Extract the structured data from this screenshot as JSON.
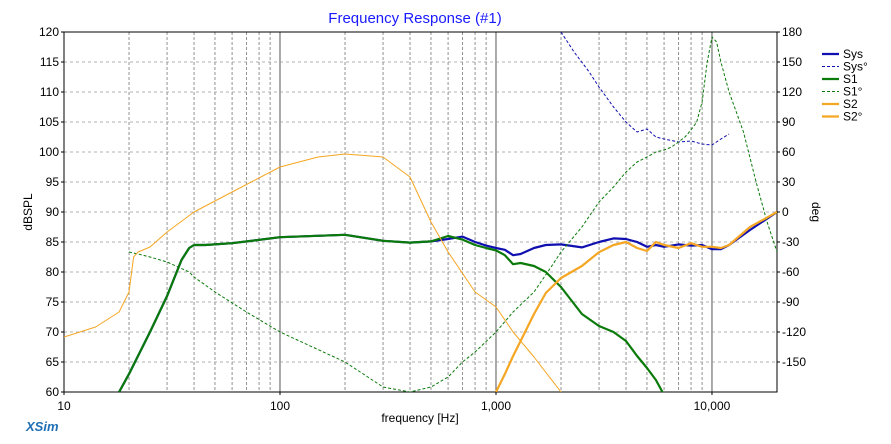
{
  "chart_data": {
    "type": "line",
    "title": "Frequency Response (#1)",
    "xlabel": "frequency [Hz]",
    "ylabel": "dBSPL",
    "y2label": "deg",
    "xscale": "log",
    "xlim": [
      10,
      20000
    ],
    "ylim": [
      60,
      120
    ],
    "y2lim": [
      -180,
      180
    ],
    "x_ticks": [
      {
        "v": 10,
        "label": "10"
      },
      {
        "v": 100,
        "label": "100"
      },
      {
        "v": 1000,
        "label": "1,000"
      },
      {
        "v": 10000,
        "label": "10,000"
      }
    ],
    "y_ticks": [
      "60",
      "65",
      "70",
      "75",
      "80",
      "85",
      "90",
      "95",
      "100",
      "105",
      "110",
      "115",
      "120"
    ],
    "y2_ticks": [
      "-150",
      "-120",
      "-90",
      "-60",
      "-30",
      "0",
      "30",
      "60",
      "90",
      "120",
      "150",
      "180"
    ],
    "grid": true,
    "legend_position": "right",
    "branding": "XSim",
    "colors": {
      "sys": "#1010b0",
      "s1": "#0a7a0a",
      "s2": "#f5a623",
      "title": "#1a1aff",
      "brand": "#1f6fb5"
    },
    "series": [
      {
        "name": "Sys",
        "axis": "left",
        "style": "solid",
        "width": 2.2,
        "color": "#1010b0",
        "x": [
          18,
          20,
          25,
          30,
          35,
          38,
          40,
          45,
          60,
          100,
          200,
          300,
          400,
          500,
          600,
          700,
          800,
          900,
          1000,
          1100,
          1200,
          1300,
          1500,
          1700,
          2000,
          2500,
          3000,
          3500,
          4000,
          4500,
          5000,
          5500,
          6000,
          7000,
          8000,
          9000,
          10000,
          11000,
          12000,
          15000,
          20000
        ],
        "y": [
          60,
          63,
          70,
          76,
          82,
          84,
          84.5,
          84.5,
          84.8,
          85.8,
          86.2,
          85.2,
          84.9,
          85.1,
          85.5,
          85.9,
          85.0,
          84.4,
          84.0,
          83.7,
          82.8,
          83.0,
          84.0,
          84.5,
          84.6,
          84.1,
          85.0,
          85.6,
          85.5,
          85.0,
          84.2,
          84.5,
          84.2,
          84.6,
          84.4,
          84.5,
          83.8,
          83.8,
          84.5,
          87.0,
          90.0
        ]
      },
      {
        "name": "Sys°",
        "axis": "right",
        "style": "dashed",
        "width": 1,
        "color": "#1010b0",
        "x": [
          2000,
          2300,
          2700,
          3000,
          3500,
          4000,
          4500,
          5000,
          5500,
          6000,
          7000,
          8000,
          9000,
          10000,
          11000,
          12000
        ],
        "y": [
          180,
          160,
          140,
          125,
          105,
          90,
          80,
          83,
          75,
          73,
          70,
          71,
          68,
          67,
          73,
          78
        ]
      },
      {
        "name": "S1",
        "axis": "left",
        "style": "solid",
        "width": 2.2,
        "color": "#0a7a0a",
        "x": [
          18,
          20,
          25,
          30,
          35,
          38,
          40,
          45,
          60,
          100,
          200,
          300,
          400,
          500,
          600,
          700,
          800,
          900,
          1000,
          1100,
          1200,
          1300,
          1500,
          1700,
          2000,
          2500,
          3000,
          3500,
          4000,
          4500,
          5000,
          5500,
          6000
        ],
        "y": [
          60,
          63,
          70,
          76,
          82,
          84,
          84.5,
          84.5,
          84.8,
          85.8,
          86.2,
          85.2,
          84.9,
          85.1,
          86.0,
          85.4,
          84.5,
          84.0,
          83.6,
          82.8,
          81.3,
          81.5,
          81.0,
          80.0,
          77.5,
          73.0,
          71.0,
          70.0,
          68.5,
          66.0,
          64.0,
          62.0,
          59.5
        ]
      },
      {
        "name": "S1°",
        "axis": "right",
        "style": "dashed",
        "width": 1,
        "color": "#0a7a0a",
        "x": [
          20,
          22,
          25,
          30,
          38,
          40,
          50,
          70,
          100,
          200,
          300,
          400,
          500,
          600,
          700,
          800,
          1000,
          1200,
          1500,
          1800,
          2000,
          2500,
          3000,
          3500,
          4000,
          4500,
          5000,
          5500,
          6000,
          6500,
          7000,
          7500,
          8000,
          8500,
          9000,
          9500,
          10000,
          10500,
          11000,
          12000,
          14000,
          16000,
          18000,
          20000
        ],
        "y": [
          -40,
          -42,
          -45,
          -50,
          -60,
          -65,
          -80,
          -100,
          -120,
          -150,
          -175,
          -180,
          -175,
          -165,
          -150,
          -140,
          -120,
          -100,
          -80,
          -55,
          -40,
          -15,
          10,
          25,
          40,
          50,
          55,
          60,
          62,
          65,
          70,
          75,
          82,
          90,
          110,
          150,
          175,
          170,
          150,
          120,
          80,
          30,
          -10,
          -40
        ]
      },
      {
        "name": "S2",
        "axis": "left",
        "style": "solid",
        "width": 2.2,
        "color": "#f5a623",
        "x": [
          1000,
          1100,
          1200,
          1300,
          1500,
          1700,
          2000,
          2500,
          3000,
          3500,
          4000,
          4500,
          5000,
          5500,
          6000,
          7000,
          8000,
          9000,
          10000,
          11000,
          12000,
          15000,
          20000
        ],
        "y": [
          60,
          63,
          66,
          68.5,
          73,
          76.5,
          79.0,
          81.0,
          83.3,
          84.5,
          85.0,
          84.0,
          83.5,
          85.0,
          84.5,
          84.0,
          84.8,
          84.2,
          84.2,
          84.0,
          84.5,
          87.5,
          90.0
        ]
      },
      {
        "name": "S2°",
        "axis": "right",
        "style": "solid",
        "width": 1,
        "color": "#f5a623",
        "x": [
          10,
          14,
          18,
          20,
          21,
          22,
          25,
          30,
          40,
          60,
          100,
          150,
          200,
          300,
          400,
          500,
          600,
          800,
          1000,
          1200,
          1500,
          2000
        ],
        "y": [
          -125,
          -115,
          -100,
          -80,
          -45,
          -40,
          -35,
          -20,
          0,
          20,
          45,
          55,
          58,
          55,
          35,
          -10,
          -40,
          -80,
          -95,
          -120,
          -145,
          -180
        ]
      }
    ]
  }
}
